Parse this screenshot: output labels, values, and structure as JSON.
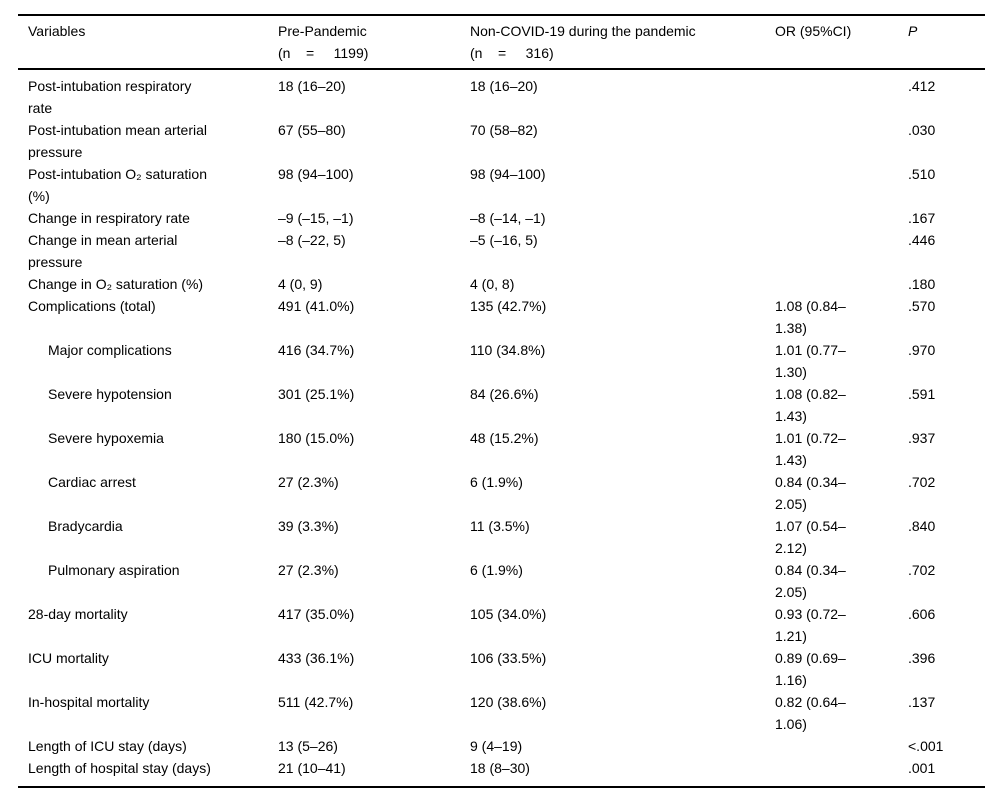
{
  "page": {
    "background": "#ffffff",
    "text_color": "#000000",
    "rule_color": "#000000"
  },
  "table": {
    "header": {
      "variables": "Variables",
      "pre_pandemic": "Pre-Pandemic\n(n    =     1199)",
      "non_covid": "Non-COVID-19 during the pandemic\n(n    =     316)",
      "or_ci": "OR (95%CI)",
      "p": "P"
    },
    "rows": [
      {
        "variable": "Post-intubation respiratory\nrate",
        "pre_pandemic": "18 (16–20)",
        "non_covid": "18 (16–20)",
        "or_ci": "",
        "p": ".412"
      },
      {
        "variable": "Post-intubation mean arterial\npressure",
        "pre_pandemic": "67 (55–80)",
        "non_covid": "70 (58–82)",
        "or_ci": "",
        "p": ".030"
      },
      {
        "variable": "Post-intubation O₂ saturation\n(%)",
        "pre_pandemic": "98 (94–100)",
        "non_covid": "98 (94–100)",
        "or_ci": "",
        "p": ".510"
      },
      {
        "variable": "Change in respiratory rate",
        "pre_pandemic": "–9 (–15, –1)",
        "non_covid": "–8 (–14, –1)",
        "or_ci": "",
        "p": ".167"
      },
      {
        "variable": "Change in mean arterial\npressure",
        "pre_pandemic": "–8 (–22, 5)",
        "non_covid": "–5 (–16, 5)",
        "or_ci": "",
        "p": ".446"
      },
      {
        "variable": "Change in O₂ saturation (%)",
        "pre_pandemic": "4 (0, 9)",
        "non_covid": "4 (0, 8)",
        "or_ci": "",
        "p": ".180"
      },
      {
        "variable": "Complications (total)",
        "pre_pandemic": "491 (41.0%)",
        "non_covid": "135 (42.7%)",
        "or_ci": "1.08 (0.84–\n1.38)",
        "p": ".570"
      },
      {
        "variable": "Major complications",
        "indent": true,
        "pre_pandemic": "416 (34.7%)",
        "non_covid": "110 (34.8%)",
        "or_ci": "1.01 (0.77–\n1.30)",
        "p": ".970"
      },
      {
        "variable": "Severe hypotension",
        "indent": true,
        "pre_pandemic": "301 (25.1%)",
        "non_covid": "84 (26.6%)",
        "or_ci": "1.08 (0.82–\n1.43)",
        "p": ".591"
      },
      {
        "variable": "Severe hypoxemia",
        "indent": true,
        "pre_pandemic": "180 (15.0%)",
        "non_covid": "48 (15.2%)",
        "or_ci": "1.01 (0.72–\n1.43)",
        "p": ".937"
      },
      {
        "variable": "Cardiac arrest",
        "indent": true,
        "pre_pandemic": "27 (2.3%)",
        "non_covid": "6 (1.9%)",
        "or_ci": "0.84 (0.34–\n2.05)",
        "p": ".702"
      },
      {
        "variable": "Bradycardia",
        "indent": true,
        "pre_pandemic": "39 (3.3%)",
        "non_covid": "11 (3.5%)",
        "or_ci": "1.07 (0.54–\n2.12)",
        "p": ".840"
      },
      {
        "variable": "Pulmonary aspiration",
        "indent": true,
        "pre_pandemic": "27 (2.3%)",
        "non_covid": "6 (1.9%)",
        "or_ci": "0.84 (0.34–\n2.05)",
        "p": ".702"
      },
      {
        "variable": "28-day mortality",
        "pre_pandemic": "417 (35.0%)",
        "non_covid": "105 (34.0%)",
        "or_ci": "0.93 (0.72–\n1.21)",
        "p": ".606"
      },
      {
        "variable": "ICU mortality",
        "pre_pandemic": "433 (36.1%)",
        "non_covid": "106 (33.5%)",
        "or_ci": "0.89 (0.69–\n1.16)",
        "p": ".396"
      },
      {
        "variable": "In-hospital mortality",
        "pre_pandemic": "511 (42.7%)",
        "non_covid": "120 (38.6%)",
        "or_ci": "0.82 (0.64–\n1.06)",
        "p": ".137"
      },
      {
        "variable": "Length of ICU stay (days)",
        "pre_pandemic": "13 (5–26)",
        "non_covid": "9 (4–19)",
        "or_ci": "",
        "p": "<.001"
      },
      {
        "variable": "Length of hospital stay (days)",
        "pre_pandemic": "21 (10–41)",
        "non_covid": "18 (8–30)",
        "or_ci": "",
        "p": ".001"
      }
    ]
  }
}
